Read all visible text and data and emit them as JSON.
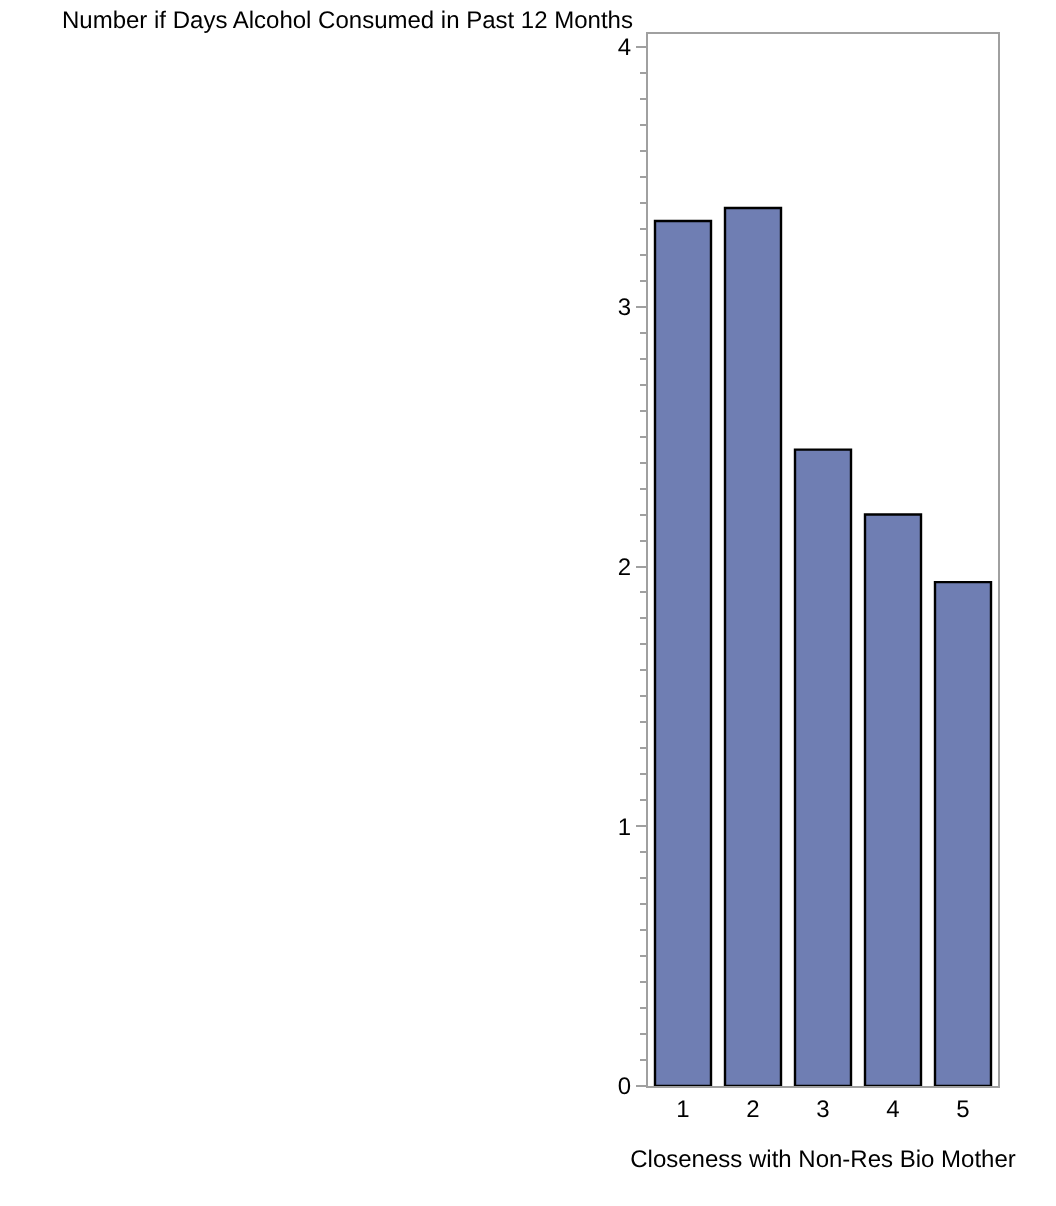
{
  "chart_data": {
    "type": "bar",
    "ylabel": "Number if Days Alcohol Consumed in Past 12 Months",
    "xlabel": "Closeness with Non-Res Bio Mother",
    "categories": [
      "1",
      "2",
      "3",
      "4",
      "5"
    ],
    "values": [
      3.33,
      3.38,
      2.45,
      2.2,
      1.94
    ],
    "color": "#6f7eb3",
    "ylim": [
      0,
      4.05
    ],
    "yticks": [
      0,
      {
        "value": 0.1,
        "label": null
      },
      {
        "value": 0.2,
        "label": null
      },
      {
        "value": 0.3,
        "label": null
      },
      {
        "value": 0.4,
        "label": null
      },
      {
        "value": 0.5,
        "label": null
      },
      {
        "value": 0.6,
        "label": null
      },
      {
        "value": 0.7,
        "label": null
      },
      {
        "value": 0.8,
        "label": null
      },
      {
        "value": 0.9,
        "label": null
      },
      1,
      {
        "value": 1.1,
        "label": null
      },
      {
        "value": 1.2,
        "label": null
      },
      {
        "value": 1.3,
        "label": null
      },
      {
        "value": 1.4,
        "label": null
      },
      {
        "value": 1.5,
        "label": null
      },
      {
        "value": 1.6,
        "label": null
      },
      {
        "value": 1.7,
        "label": null
      },
      {
        "value": 1.8,
        "label": null
      },
      {
        "value": 1.9,
        "label": null
      },
      2,
      {
        "value": 2.1,
        "label": null
      },
      {
        "value": 2.2,
        "label": null
      },
      {
        "value": 2.3,
        "label": null
      },
      {
        "value": 2.4,
        "label": null
      },
      {
        "value": 2.5,
        "label": null
      },
      {
        "value": 2.6,
        "label": null
      },
      {
        "value": 2.7,
        "label": null
      },
      {
        "value": 2.8,
        "label": null
      },
      {
        "value": 2.9,
        "label": null
      },
      3,
      {
        "value": 3.1,
        "label": null
      },
      {
        "value": 3.2,
        "label": null
      },
      {
        "value": 3.3,
        "label": null
      },
      {
        "value": 3.4,
        "label": null
      },
      {
        "value": 3.5,
        "label": null
      },
      {
        "value": 3.6,
        "label": null
      },
      {
        "value": 3.7,
        "label": null
      },
      {
        "value": 3.8,
        "label": null
      },
      {
        "value": 3.9,
        "label": null
      },
      4
    ]
  }
}
